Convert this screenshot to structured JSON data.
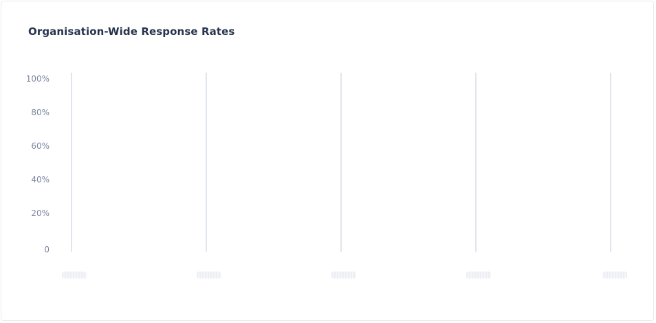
{
  "card": {
    "title": "Organisation-Wide Response Rates"
  },
  "chart_data": {
    "type": "bar",
    "title": "Organisation-Wide Response Rates",
    "xlabel": "",
    "ylabel": "",
    "y_ticks": [
      "0",
      "20%",
      "40%",
      "60%",
      "80%",
      "100%"
    ],
    "ylim": [
      0,
      100
    ],
    "category_count": 5,
    "categories_loading": true,
    "grid": "vertical",
    "colors": {
      "title": "#26344d",
      "tick_text": "#7d86a0",
      "gridline": "#d7dbe5",
      "placeholder": "#eceef3"
    }
  }
}
